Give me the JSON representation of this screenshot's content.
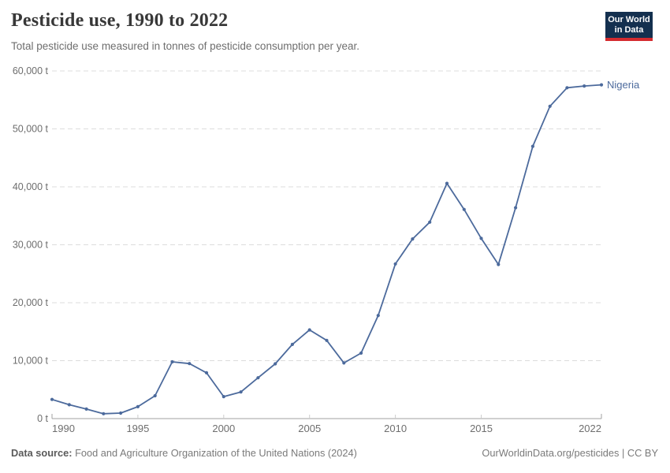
{
  "logo": {
    "line1": "Our World",
    "line2": "in Data",
    "bg_color": "#14304f",
    "bar_color": "#d42b2f"
  },
  "chart_data": {
    "type": "line",
    "title": "Pesticide use, 1990 to 2022",
    "subtitle": "Total pesticide use measured in tonnes of pesticide consumption per year.",
    "x": [
      1990,
      1991,
      1992,
      1993,
      1994,
      1995,
      1996,
      1997,
      1998,
      1999,
      2000,
      2001,
      2002,
      2003,
      2004,
      2005,
      2006,
      2007,
      2008,
      2009,
      2010,
      2011,
      2012,
      2013,
      2014,
      2015,
      2016,
      2017,
      2018,
      2019,
      2020,
      2021,
      2022
    ],
    "series": [
      {
        "name": "Nigeria",
        "color": "#4c6a9c",
        "values": [
          3300,
          2400,
          1650,
          850,
          950,
          2050,
          3950,
          9800,
          9500,
          7900,
          3800,
          4600,
          7050,
          9450,
          12800,
          15300,
          13500,
          9600,
          11300,
          17800,
          26700,
          31000,
          33900,
          40600,
          36100,
          31100,
          26600,
          36400,
          47000,
          53900,
          57100,
          57400,
          57600
        ]
      }
    ],
    "xlabel": "",
    "ylabel": "",
    "xlim": [
      1990,
      2022
    ],
    "ylim": [
      0,
      60000
    ],
    "x_ticks": [
      1990,
      1995,
      2000,
      2005,
      2010,
      2015,
      2022
    ],
    "y_ticks": [
      0,
      10000,
      20000,
      30000,
      40000,
      50000,
      60000
    ],
    "y_unit": " t",
    "grid": "horizontal-dashed",
    "legend_position": "end-of-line"
  },
  "footer": {
    "source_label": "Data source:",
    "source_text": " Food and Agriculture Organization of the United Nations (2024)",
    "link_text": "OurWorldinData.org/pesticides | CC BY"
  }
}
